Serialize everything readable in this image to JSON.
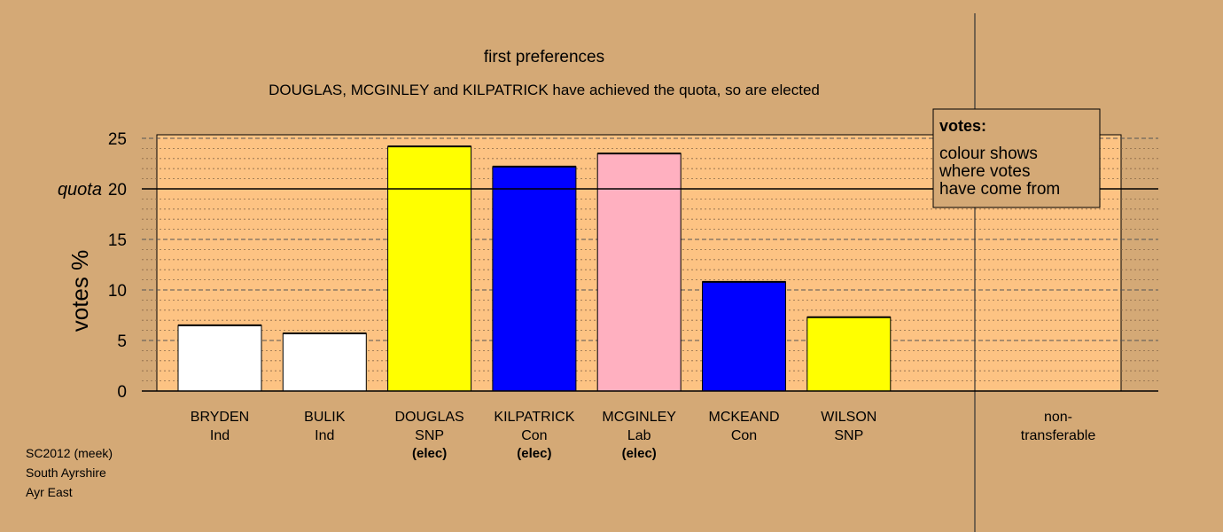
{
  "chart_data": {
    "type": "bar",
    "title": "first preferences",
    "subtitle": "DOUGLAS, MCGINLEY and KILPATRICK have achieved the quota, so are elected",
    "ylabel": "votes %",
    "ylim": [
      0,
      25
    ],
    "yticks": [
      0,
      5,
      10,
      15,
      20,
      25
    ],
    "quota": {
      "value": 20,
      "label": "quota"
    },
    "categories": [
      {
        "name": "BRYDEN",
        "party": "Ind",
        "value": 6.5,
        "color": "#ffffff",
        "elected": ""
      },
      {
        "name": "BULIK",
        "party": "Ind",
        "value": 5.7,
        "color": "#ffffff",
        "elected": ""
      },
      {
        "name": "DOUGLAS",
        "party": "SNP",
        "value": 24.2,
        "color": "#ffff00",
        "elected": "(elec)"
      },
      {
        "name": "KILPATRICK",
        "party": "Con",
        "value": 22.2,
        "color": "#0000ff",
        "elected": "(elec)"
      },
      {
        "name": "MCGINLEY",
        "party": "Lab",
        "value": 23.5,
        "color": "#ffb0c0",
        "elected": "(elec)"
      },
      {
        "name": "MCKEAND",
        "party": "Con",
        "value": 10.8,
        "color": "#0000ff",
        "elected": ""
      },
      {
        "name": "WILSON",
        "party": "SNP",
        "value": 7.3,
        "color": "#ffff00",
        "elected": ""
      }
    ],
    "nontransferable": {
      "label_line1": "non-",
      "label_line2": "transferable",
      "value": 0
    },
    "legend": {
      "position": "top-right",
      "heading": "votes:",
      "lines": [
        "colour shows",
        "where votes",
        "have come from"
      ]
    },
    "footer": [
      "SC2012 (meek)",
      "South Ayrshire",
      "Ayr East"
    ],
    "colors": {
      "background": "#d4a976",
      "plot_area": "#fdc383"
    }
  }
}
